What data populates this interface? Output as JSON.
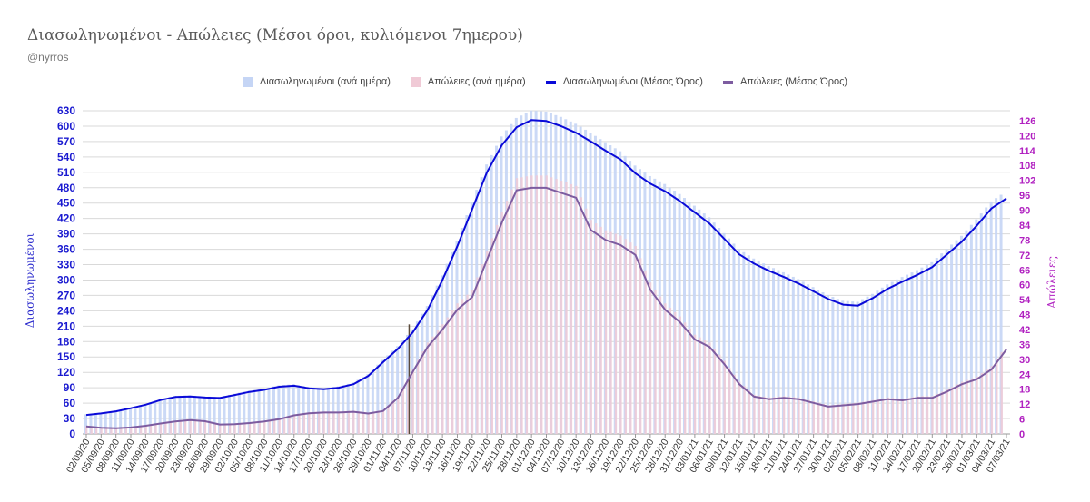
{
  "chart_data": {
    "type": "bar+line",
    "title": "Διασωληνωμένοι - Απώλειες (Μέσοι όροι, κυλιόμενοι 7ημερου)",
    "subtitle": "@nyrros",
    "ylabel_left": "Διασωληνωμένοι",
    "ylabel_right": "Απώλειες",
    "y_left_ticks": [
      "0",
      "30",
      "60",
      "90",
      "120",
      "150",
      "180",
      "210",
      "240",
      "270",
      "300",
      "330",
      "360",
      "390",
      "420",
      "450",
      "480",
      "510",
      "540",
      "570",
      "600",
      "630"
    ],
    "y_right_ticks": [
      "0",
      "6",
      "12",
      "18",
      "24",
      "30",
      "36",
      "42",
      "48",
      "54",
      "60",
      "66",
      "72",
      "78",
      "84",
      "90",
      "96",
      "102",
      "108",
      "114",
      "120",
      "126"
    ],
    "ylim_left": [
      0,
      630
    ],
    "ylim_right": [
      0,
      130
    ],
    "legend": [
      {
        "name": "Διασωληνωμένοι (ανά ημέρα)",
        "color": "#c5d5f5",
        "kind": "box"
      },
      {
        "name": "Απώλειες (ανά ημέρα)",
        "color": "#f0cad6",
        "kind": "box"
      },
      {
        "name": "Διασωληνωμένοι (Μέσος Όρος)",
        "color": "#0a0ad8",
        "kind": "line"
      },
      {
        "name": "Απώλειες (Μέσος Όρος)",
        "color": "#7d5ca0",
        "kind": "line"
      }
    ],
    "x_labels": [
      "02/09/20",
      "05/09/20",
      "08/09/20",
      "11/09/20",
      "14/09/20",
      "17/09/20",
      "20/09/20",
      "23/09/20",
      "26/09/20",
      "29/09/20",
      "02/10/20",
      "05/10/20",
      "08/10/20",
      "11/10/20",
      "14/10/20",
      "17/10/20",
      "20/10/20",
      "23/10/20",
      "26/10/20",
      "29/10/20",
      "01/11/20",
      "04/11/20",
      "07/11/20",
      "10/11/20",
      "13/11/20",
      "16/11/20",
      "19/11/20",
      "22/11/20",
      "25/11/20",
      "28/11/20",
      "01/12/20",
      "04/12/20",
      "07/12/20",
      "10/12/20",
      "13/12/20",
      "16/12/20",
      "19/12/20",
      "22/12/20",
      "25/12/20",
      "28/12/20",
      "31/12/20",
      "03/01/21",
      "06/01/21",
      "09/01/21",
      "12/01/21",
      "15/01/21",
      "18/01/21",
      "21/01/21",
      "24/01/21",
      "27/01/21",
      "30/01/21",
      "02/02/21",
      "05/02/21",
      "08/02/21",
      "11/02/21",
      "14/02/21",
      "17/02/21",
      "20/02/21",
      "23/02/21",
      "26/02/21",
      "01/03/21",
      "04/03/21",
      "07/03/21"
    ],
    "marker_label": "07/11/20",
    "series": [
      {
        "name": "Διασωληνωμένοι (Μέσος Όρος)",
        "axis": "left",
        "color": "#0a0ad8",
        "values": [
          37,
          40,
          44,
          50,
          57,
          66,
          72,
          73,
          71,
          70,
          76,
          82,
          86,
          92,
          94,
          89,
          87,
          90,
          97,
          113,
          140,
          166,
          198,
          242,
          300,
          366,
          438,
          510,
          563,
          598,
          612,
          610,
          600,
          587,
          570,
          552,
          535,
          508,
          488,
          473,
          454,
          432,
          410,
          380,
          350,
          332,
          318,
          306,
          293,
          278,
          263,
          252,
          250,
          265,
          283,
          297,
          310,
          325,
          350,
          375,
          406,
          440,
          459
        ]
      },
      {
        "name": "Απώλειες (Μέσος Όρος)",
        "axis": "right",
        "color": "#7d5ca0",
        "values": [
          3,
          2.5,
          2.3,
          2.6,
          3.3,
          4.2,
          5,
          5.6,
          5.1,
          3.8,
          3.9,
          4.4,
          5,
          5.9,
          7.5,
          8.3,
          8.6,
          8.6,
          8.9,
          8.2,
          9.2,
          14.5,
          25,
          35,
          42,
          50,
          55,
          70,
          85,
          98,
          99,
          99,
          97,
          95,
          82,
          78,
          76,
          72,
          58,
          50,
          45,
          38,
          35,
          28,
          20,
          15,
          14,
          14.5,
          14,
          12.5,
          11,
          11.5,
          12,
          13,
          14,
          13.5,
          14.5,
          14.5,
          17,
          20,
          22,
          26,
          34
        ]
      },
      {
        "name": "Διασωληνωμένοι (ανά ημέρα)",
        "axis": "left",
        "color": "#c5d5f5",
        "kind": "bar",
        "values": [
          37,
          40,
          44,
          50,
          57,
          66,
          72,
          73,
          71,
          70,
          76,
          82,
          86,
          92,
          94,
          89,
          87,
          90,
          97,
          113,
          140,
          166,
          198,
          242,
          300,
          366,
          438,
          510,
          563,
          598,
          612,
          610,
          600,
          587,
          570,
          552,
          535,
          508,
          488,
          473,
          454,
          432,
          410,
          380,
          350,
          332,
          318,
          306,
          293,
          278,
          263,
          252,
          250,
          265,
          283,
          297,
          310,
          325,
          350,
          375,
          406,
          440,
          459
        ]
      },
      {
        "name": "Απώλειες (ανά ημέρα)",
        "axis": "right",
        "color": "#f0cad6",
        "kind": "bar",
        "values": [
          3,
          2.5,
          2.3,
          2.6,
          3.3,
          4.2,
          5,
          5.6,
          5.1,
          3.8,
          3.9,
          4.4,
          5,
          5.9,
          7.5,
          8.3,
          8.6,
          8.6,
          8.9,
          8.2,
          9.2,
          14.5,
          25,
          35,
          42,
          50,
          55,
          70,
          85,
          98,
          99,
          99,
          97,
          95,
          82,
          78,
          76,
          72,
          58,
          50,
          45,
          38,
          35,
          28,
          20,
          15,
          14,
          14.5,
          14,
          12.5,
          11,
          11.5,
          12,
          13,
          14,
          13.5,
          14.5,
          14.5,
          17,
          20,
          22,
          26,
          34
        ]
      }
    ]
  }
}
